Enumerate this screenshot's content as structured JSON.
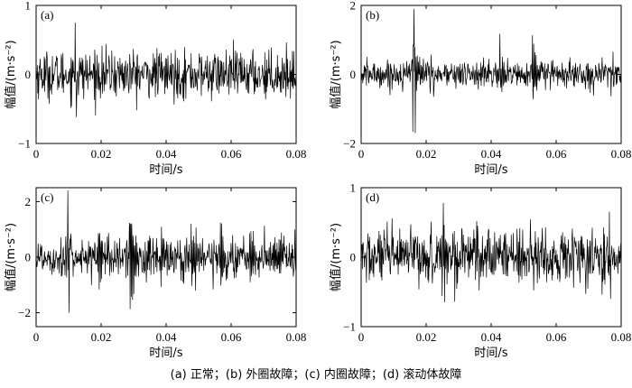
{
  "caption": "(a) 正常；(b) 外圈故障；(c) 内圈故障；(d) 滚动体故障",
  "chart_data": [
    {
      "type": "line",
      "panel_label": "(a)",
      "xlabel": "时间/s",
      "ylabel": "幅值/(m·s⁻²)",
      "xlim": [
        0,
        0.08
      ],
      "ylim": [
        -1,
        1
      ],
      "xticks": [
        "0",
        "0.02",
        "0.04",
        "0.06",
        "0.08"
      ],
      "yticks": [
        {
          "value": -1,
          "label": "−1"
        },
        {
          "value": 0,
          "label": "0"
        },
        {
          "value": 1,
          "label": "1"
        }
      ],
      "series": [
        {
          "x_start": 0,
          "x_end": 0.08,
          "samples": 640,
          "rms": 0.17,
          "min": -0.62,
          "max": 0.75,
          "impulses": []
        }
      ],
      "line_color": "#000000"
    },
    {
      "type": "line",
      "panel_label": "(b)",
      "xlabel": "时间/s",
      "ylabel": "幅值/(m·s⁻²)",
      "xlim": [
        0,
        0.08
      ],
      "ylim": [
        -2,
        2
      ],
      "xticks": [
        "0",
        "0.02",
        "0.04",
        "0.06",
        "0.08"
      ],
      "yticks": [
        {
          "value": -2,
          "label": "−2"
        },
        {
          "value": 0,
          "label": "0"
        },
        {
          "value": 2,
          "label": "2"
        }
      ],
      "series": [
        {
          "x_start": 0,
          "x_end": 0.08,
          "samples": 640,
          "rms": 0.2,
          "min": -1.7,
          "max": 1.9,
          "impulses": [
            {
              "t": 0.016,
              "amp": 1.9
            },
            {
              "t": 0.043,
              "amp": 0.7
            },
            {
              "t": 0.053,
              "amp": 1.1
            },
            {
              "t": 0.077,
              "amp": 0.6
            }
          ]
        }
      ],
      "line_color": "#000000"
    },
    {
      "type": "line",
      "panel_label": "(c)",
      "xlabel": "时间/s",
      "ylabel": "幅值/(m·s⁻²)",
      "xlim": [
        0,
        0.08
      ],
      "ylim": [
        -2.5,
        2.5
      ],
      "xticks": [
        "0",
        "0.02",
        "0.04",
        "0.06",
        "0.08"
      ],
      "yticks": [
        {
          "value": -2,
          "label": "−2"
        },
        {
          "value": 0,
          "label": "0"
        },
        {
          "value": 2,
          "label": "2"
        }
      ],
      "series": [
        {
          "x_start": 0,
          "x_end": 0.08,
          "samples": 640,
          "rms": 0.35,
          "min": -2.0,
          "max": 2.4,
          "impulses": [
            {
              "t": 0.0095,
              "amp": 1.0
            },
            {
              "t": 0.0195,
              "amp": 1.2
            },
            {
              "t": 0.029,
              "amp": 2.4
            },
            {
              "t": 0.0385,
              "amp": 1.2
            },
            {
              "t": 0.048,
              "amp": 1.1
            },
            {
              "t": 0.057,
              "amp": 1.2
            },
            {
              "t": 0.066,
              "amp": 1.6
            },
            {
              "t": 0.075,
              "amp": 1.0
            }
          ]
        }
      ],
      "line_color": "#000000"
    },
    {
      "type": "line",
      "panel_label": "(d)",
      "xlabel": "时间/s",
      "ylabel": "幅值/(m·s⁻²)",
      "xlim": [
        0,
        0.08
      ],
      "ylim": [
        -1,
        1
      ],
      "xticks": [
        "0",
        "0.02",
        "0.04",
        "0.06",
        "0.08"
      ],
      "yticks": [
        {
          "value": -1,
          "label": "−1"
        },
        {
          "value": 0,
          "label": "0"
        },
        {
          "value": 1,
          "label": "1"
        }
      ],
      "series": [
        {
          "x_start": 0,
          "x_end": 0.08,
          "samples": 640,
          "rms": 0.2,
          "min": -0.65,
          "max": 0.78,
          "impulses": [
            {
              "t": 0.025,
              "amp": 0.75
            }
          ]
        }
      ],
      "line_color": "#000000"
    }
  ]
}
